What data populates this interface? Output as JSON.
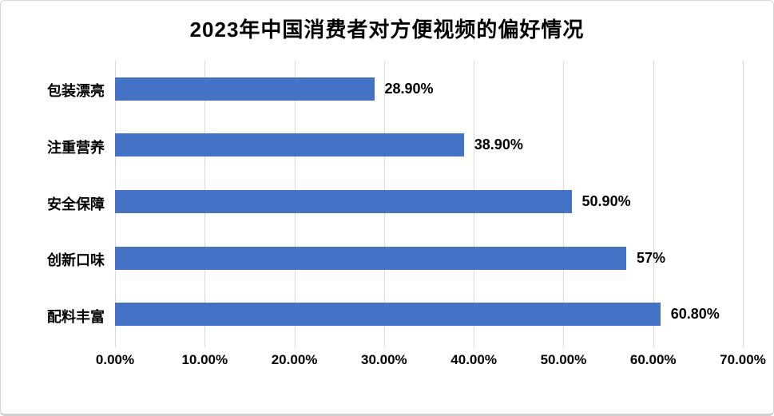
{
  "chart_data": {
    "type": "bar",
    "orientation": "horizontal",
    "title": "2023年中国消费者对方便视频的偏好情况",
    "categories": [
      "包装漂亮",
      "注重营养",
      "安全保障",
      "创新口味",
      "配料丰富"
    ],
    "values": [
      28.9,
      38.9,
      50.9,
      57,
      60.8
    ],
    "value_labels": [
      "28.90%",
      "38.90%",
      "50.90%",
      "57%",
      "60.80%"
    ],
    "xlabel": "",
    "ylabel": "",
    "xlim": [
      0,
      70
    ],
    "x_tick_values": [
      0,
      10,
      20,
      30,
      40,
      50,
      60,
      70
    ],
    "x_tick_labels": [
      "0.00%",
      "10.00%",
      "20.00%",
      "30.00%",
      "40.00%",
      "50.00%",
      "60.00%",
      "70.00%"
    ],
    "grid": true,
    "legend": false,
    "bar_color": "#4472C4",
    "gridline_color": "#D9D9D9",
    "text_color": "#000000"
  }
}
